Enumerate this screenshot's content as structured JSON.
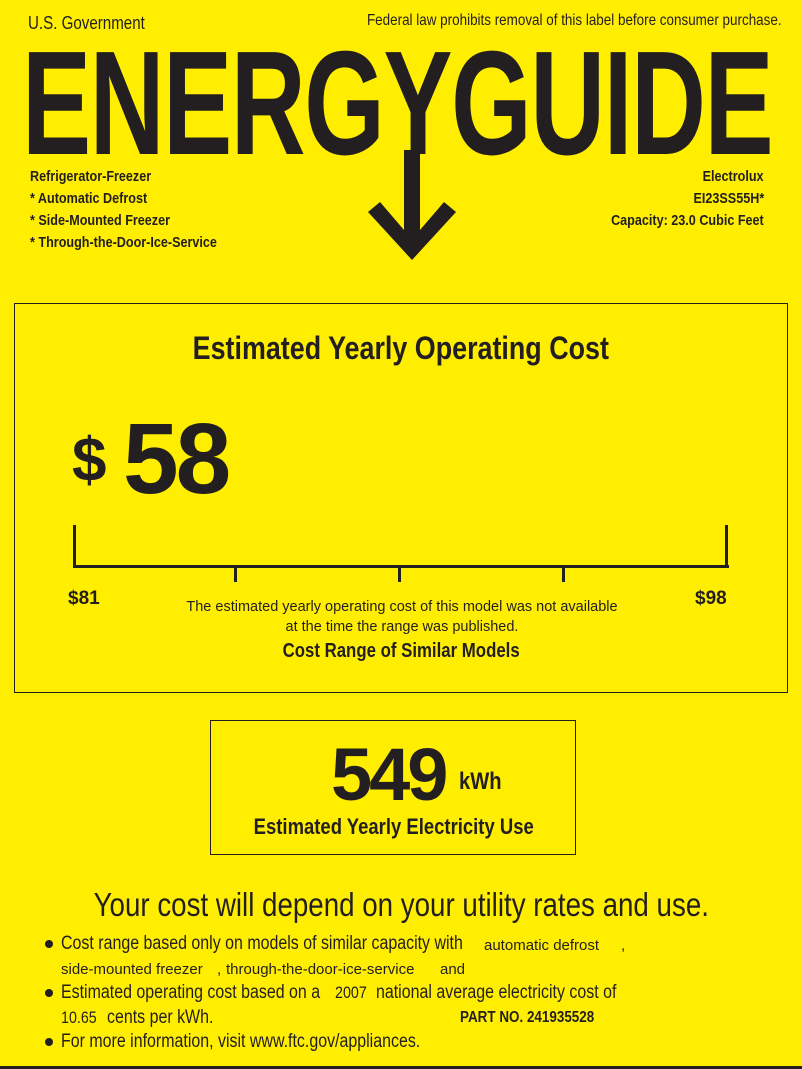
{
  "header": {
    "issuer": "U.S. Government",
    "notice": "Federal law prohibits removal of this label before consumer purchase.",
    "logo_text": "ENERGYGUIDE"
  },
  "appliance": {
    "type": "Refrigerator-Freezer",
    "features": [
      "* Automatic Defrost",
      "* Side-Mounted Freezer",
      "* Through-the-Door-Ice-Service"
    ],
    "brand": "Electrolux",
    "model": "EI23SS55H*",
    "capacity": "Capacity: 23.0 Cubic Feet"
  },
  "operating_cost": {
    "title": "Estimated Yearly Operating Cost",
    "currency": "$",
    "value": "58",
    "range_min": "$81",
    "range_max": "$98",
    "note_line1": "The estimated yearly operating cost of this model was not available",
    "note_line2": "at the time the range was published.",
    "range_label": "Cost Range of Similar Models"
  },
  "electricity": {
    "value": "549",
    "unit": "kWh",
    "label": "Estimated Yearly Electricity Use"
  },
  "footer": {
    "headline": "Your cost will depend on your utility rates and use.",
    "bullet1_a": "Cost range based only on models of similar capacity with",
    "bullet1_fill1": "automatic defrost",
    "bullet1_comma": ",",
    "bullet1_line2": "side-mounted freezer",
    "bullet1_comma2": ",",
    "bullet1_fill2": "through-the-door-ice-service",
    "bullet1_and": "and",
    "bullet2_a": "Estimated operating cost based on a",
    "bullet2_year": "2007",
    "bullet2_b": "national average electricity cost of",
    "bullet2_rate": "10.65",
    "bullet2_c": "cents per kWh.",
    "part_no": "PART NO. 241935528",
    "bullet3": "For more information, visit www.ftc.gov/appliances."
  },
  "colors": {
    "background": "#FFEE00",
    "ink": "#231f20"
  }
}
